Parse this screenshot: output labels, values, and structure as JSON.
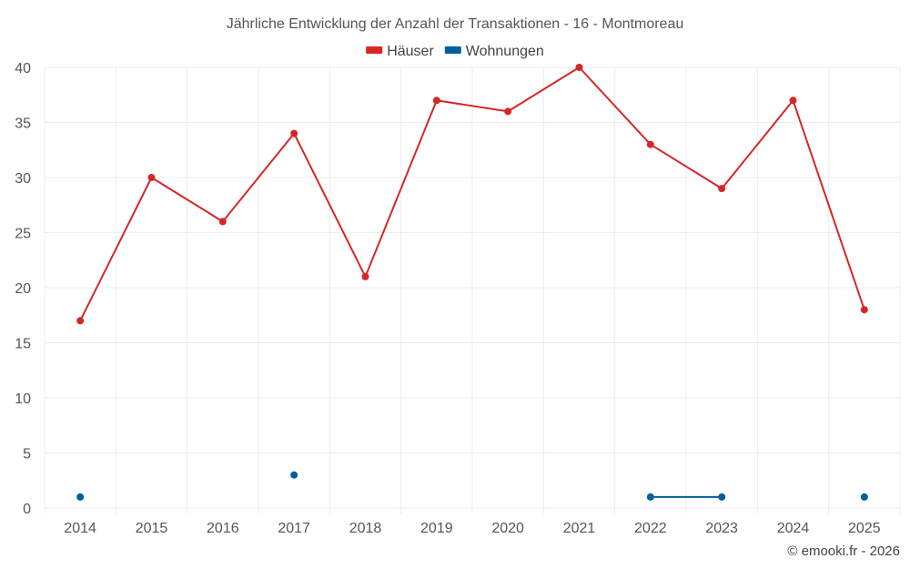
{
  "chart_data": {
    "type": "line",
    "title": "Jährliche Entwicklung der Anzahl der Transaktionen - 16 - Montmoreau",
    "categories": [
      "2014",
      "2015",
      "2016",
      "2017",
      "2018",
      "2019",
      "2020",
      "2021",
      "2022",
      "2023",
      "2024",
      "2025"
    ],
    "series": [
      {
        "name": "Häuser",
        "color": "#d62728",
        "values": [
          17,
          30,
          26,
          34,
          21,
          37,
          36,
          40,
          33,
          29,
          37,
          18
        ]
      },
      {
        "name": "Wohnungen",
        "color": "#005f9e",
        "values": [
          1,
          null,
          null,
          3,
          null,
          null,
          null,
          null,
          1,
          1,
          null,
          1
        ]
      }
    ],
    "yticks": [
      "0",
      "5",
      "10",
      "15",
      "20",
      "25",
      "30",
      "35",
      "40"
    ],
    "ylim": [
      0,
      40
    ],
    "grid": true,
    "legend": "top-center",
    "xlabel": "",
    "ylabel": ""
  },
  "footer": "© emooki.fr - 2026"
}
